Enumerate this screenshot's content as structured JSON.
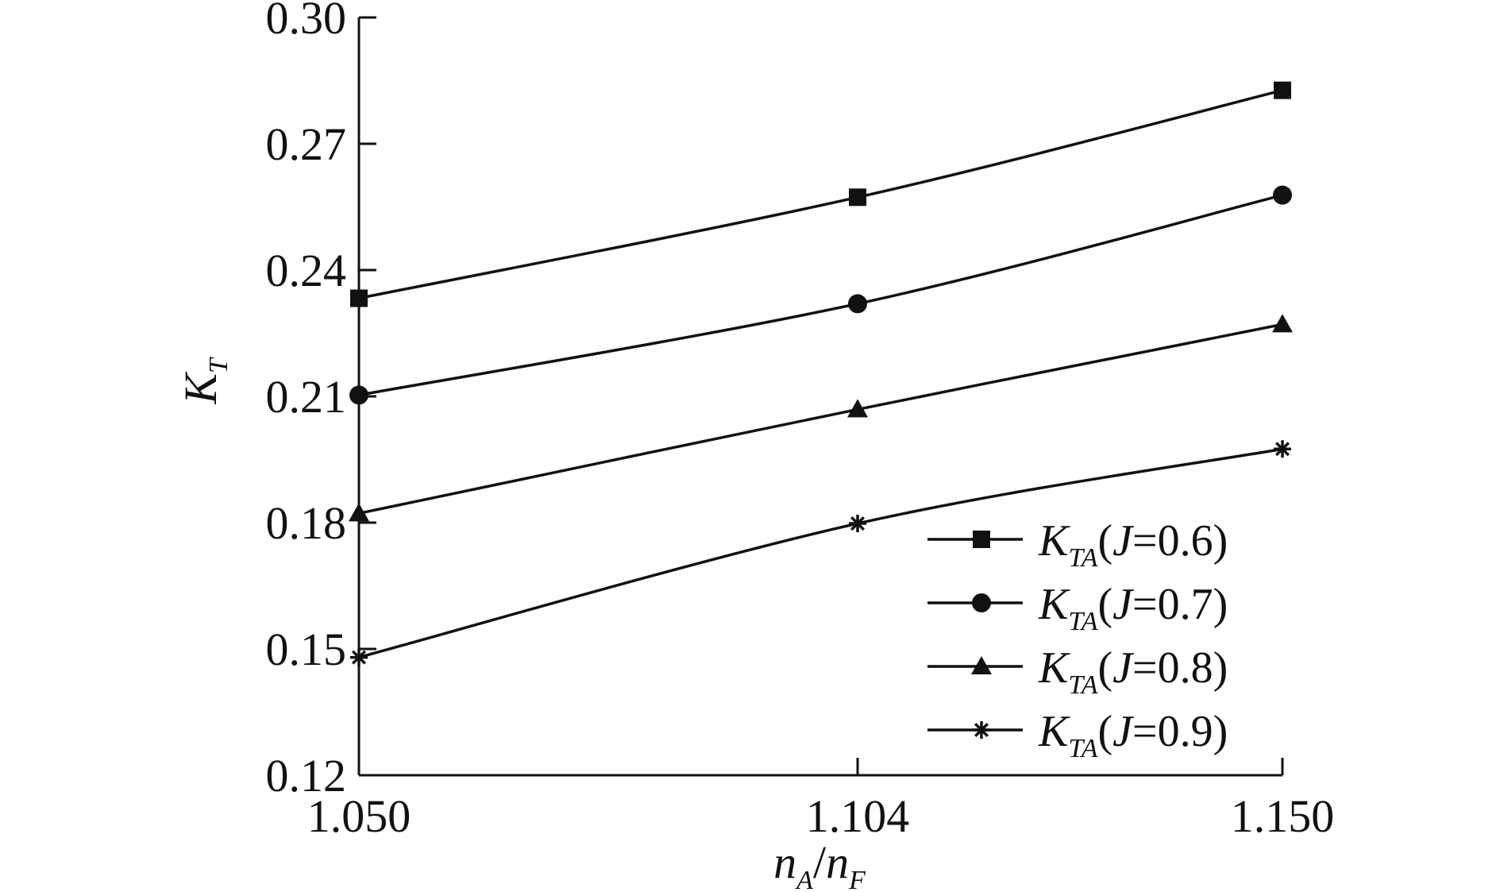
{
  "chart_data": {
    "type": "line",
    "title": "",
    "xlabel": {
      "base": "n",
      "sub": "A",
      "sep": "/",
      "base2": "n",
      "sub2": "F"
    },
    "ylabel": {
      "base": "K",
      "sub": "T"
    },
    "x": [
      1.05,
      1.104,
      1.15
    ],
    "x_tick_labels": [
      "1.050",
      "1.104",
      "1.150"
    ],
    "y_ticks": [
      0.12,
      0.15,
      0.18,
      0.21,
      0.24,
      0.27,
      0.3
    ],
    "y_tick_labels": [
      "0.12",
      "0.15",
      "0.18",
      "0.21",
      "0.24",
      "0.27",
      "0.30"
    ],
    "ylim": [
      0.12,
      0.3
    ],
    "grid": false,
    "legend_position": "bottom-right",
    "series": [
      {
        "name": "K_TA(J=0.6)",
        "legend": {
          "base": "K",
          "sub": "TA",
          "open": "(",
          "var": "J",
          "rest": "=0.6)"
        },
        "marker": "square",
        "values": [
          0.2333,
          0.2573,
          0.2827
        ]
      },
      {
        "name": "K_TA(J=0.7)",
        "legend": {
          "base": "K",
          "sub": "TA",
          "open": "(",
          "var": "J",
          "rest": "=0.7)"
        },
        "marker": "circle",
        "values": [
          0.2103,
          0.232,
          0.2578
        ]
      },
      {
        "name": "K_TA(J=0.8)",
        "legend": {
          "base": "K",
          "sub": "TA",
          "open": "(",
          "var": "J",
          "rest": "=0.8)"
        },
        "marker": "triangle",
        "values": [
          0.1822,
          0.2069,
          0.2271
        ]
      },
      {
        "name": "K_TA(J=0.9)",
        "legend": {
          "base": "K",
          "sub": "TA",
          "open": "(",
          "var": "J",
          "rest": "=0.9)"
        },
        "marker": "asterisk",
        "values": [
          0.148,
          0.1798,
          0.1975
        ]
      }
    ]
  }
}
